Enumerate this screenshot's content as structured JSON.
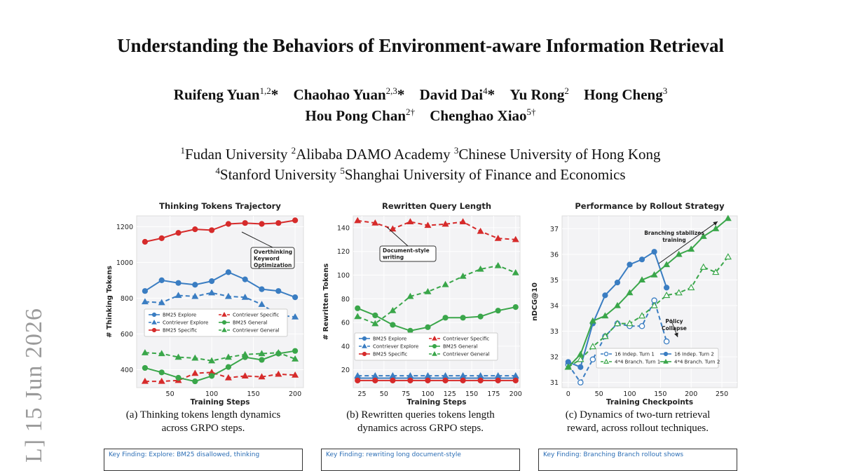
{
  "paper": {
    "title": "Understanding the Behaviors of Environment-aware Information Retrieval",
    "authors_line1": [
      {
        "name": "Ruifeng Yuan",
        "sup": "1,2",
        "mark": "*"
      },
      {
        "name": "Chaohao Yuan",
        "sup": "2,3",
        "mark": "*"
      },
      {
        "name": "David Dai",
        "sup": "4",
        "mark": "*"
      },
      {
        "name": "Yu Rong",
        "sup": "2",
        "mark": ""
      },
      {
        "name": "Hong Cheng",
        "sup": "3",
        "mark": ""
      }
    ],
    "authors_line2": [
      {
        "name": "Hou Pong Chan",
        "sup": "2†",
        "mark": ""
      },
      {
        "name": "Chenghao Xiao",
        "sup": "5†",
        "mark": ""
      }
    ],
    "affiliations_line1": [
      {
        "sup": "1",
        "name": "Fudan University"
      },
      {
        "sup": "2",
        "name": "Alibaba DAMO Academy"
      },
      {
        "sup": "3",
        "name": "Chinese University of Hong Kong"
      }
    ],
    "affiliations_line2": [
      {
        "sup": "4",
        "name": "Stanford University"
      },
      {
        "sup": "5",
        "name": "Shanghai University of Finance and Economics"
      }
    ],
    "arxiv_stamp": "L]  15 Jun 2026",
    "captions": {
      "a": [
        "(a) Thinking tokens length dynamics",
        "across GRPO steps."
      ],
      "b": [
        "(b) Rewritten queries tokens length",
        "dynamics across GRPO steps."
      ],
      "c": [
        "(c) Dynamics of two-turn retrieval",
        "reward, across rollout techniques."
      ]
    },
    "bottom_boxes": [
      "Key Finding: Explore: BM25 disallowed, thinking",
      "Key Finding: rewriting long document-style",
      "Key Finding: Branching Branch rollout shows"
    ]
  },
  "chart_data": [
    {
      "type": "line",
      "title": "Thinking Tokens Trajectory",
      "xlabel": "Training Steps",
      "ylabel": "# Thinking Tokens",
      "xlim": [
        10,
        210
      ],
      "ylim": [
        300,
        1260
      ],
      "xticks": [
        50,
        100,
        150,
        200
      ],
      "yticks": [
        400,
        600,
        800,
        1000,
        1200
      ],
      "grid": true,
      "legend_position": "lower-left",
      "annotation": "Overthinking\nKeyword\nOptimization",
      "x": [
        20,
        40,
        60,
        80,
        100,
        120,
        140,
        160,
        180,
        200
      ],
      "series": [
        {
          "name": "BM25 Explore",
          "color": "#3a7dc2",
          "dash": false,
          "marker": "circle",
          "values": [
            840,
            900,
            885,
            875,
            895,
            945,
            905,
            850,
            840,
            805
          ]
        },
        {
          "name": "Contriever Explore",
          "color": "#3a7dc2",
          "dash": true,
          "marker": "triangle",
          "values": [
            780,
            775,
            815,
            810,
            830,
            810,
            805,
            765,
            705,
            695
          ]
        },
        {
          "name": "BM25 Specific",
          "color": "#d62b2b",
          "dash": false,
          "marker": "circle",
          "values": [
            1115,
            1135,
            1165,
            1185,
            1180,
            1215,
            1220,
            1215,
            1220,
            1235
          ]
        },
        {
          "name": "Contriever Specific",
          "color": "#d62b2b",
          "dash": true,
          "marker": "triangle",
          "values": [
            335,
            335,
            340,
            380,
            385,
            355,
            365,
            360,
            375,
            370
          ]
        },
        {
          "name": "BM25 General",
          "color": "#3aa64a",
          "dash": false,
          "marker": "circle",
          "values": [
            410,
            385,
            355,
            335,
            365,
            415,
            470,
            455,
            490,
            505
          ]
        },
        {
          "name": "Contriever General",
          "color": "#3aa64a",
          "dash": true,
          "marker": "triangle",
          "values": [
            495,
            490,
            470,
            465,
            450,
            470,
            485,
            490,
            495,
            460
          ]
        }
      ]
    },
    {
      "type": "line",
      "title": "Rewritten Query Length",
      "xlabel": "Training Steps",
      "ylabel": "# Rewritten Tokens",
      "xlim": [
        15,
        205
      ],
      "ylim": [
        5,
        150
      ],
      "xticks": [
        25,
        50,
        75,
        100,
        125,
        150,
        175,
        200
      ],
      "yticks": [
        20,
        40,
        60,
        80,
        100,
        120,
        140
      ],
      "grid": true,
      "legend_position": "lower-left",
      "annotation": "Document-style\nwriting",
      "x": [
        20,
        40,
        60,
        80,
        100,
        120,
        140,
        160,
        180,
        200
      ],
      "series": [
        {
          "name": "BM25 Explore",
          "color": "#3a7dc2",
          "dash": false,
          "marker": "circle",
          "values": [
            13,
            13,
            13,
            13,
            13,
            13,
            13,
            13,
            13,
            13
          ]
        },
        {
          "name": "Contriever Explore",
          "color": "#3a7dc2",
          "dash": true,
          "marker": "triangle",
          "values": [
            15,
            15,
            15,
            15,
            15,
            15,
            15,
            15,
            15,
            15
          ]
        },
        {
          "name": "BM25 Specific",
          "color": "#d62b2b",
          "dash": false,
          "marker": "circle",
          "values": [
            11,
            11,
            11,
            11,
            11,
            11,
            11,
            11,
            11,
            11
          ]
        },
        {
          "name": "Contriever Specific",
          "color": "#d62b2b",
          "dash": true,
          "marker": "triangle",
          "values": [
            146,
            144,
            139,
            145,
            142,
            143,
            145,
            137,
            131,
            130
          ]
        },
        {
          "name": "BM25 General",
          "color": "#3aa64a",
          "dash": false,
          "marker": "circle",
          "values": [
            72,
            66,
            58,
            53,
            56,
            64,
            64,
            65,
            70,
            73
          ]
        },
        {
          "name": "Contriever General",
          "color": "#3aa64a",
          "dash": true,
          "marker": "triangle",
          "values": [
            65,
            59,
            70,
            82,
            86,
            92,
            99,
            105,
            108,
            102
          ]
        }
      ]
    },
    {
      "type": "line",
      "title": "Performance by Rollout Strategy",
      "xlabel": "Training Checkpoints",
      "ylabel": "nDCG@10",
      "xlim": [
        -10,
        275
      ],
      "ylim": [
        30.8,
        37.5
      ],
      "xticks": [
        0,
        50,
        100,
        150,
        200,
        250
      ],
      "yticks": [
        31,
        32,
        33,
        34,
        35,
        36,
        37
      ],
      "grid": true,
      "legend_position": "lower-center",
      "annotations": [
        "Branching stabilizes\ntraining",
        "Policy\nCollapse"
      ],
      "series": [
        {
          "name": "16 Indep. Turn 1",
          "color": "#3a7dc2",
          "dash": true,
          "marker": "open-circle",
          "x": [
            0,
            20,
            40,
            60,
            80,
            100,
            120,
            140,
            160
          ],
          "values": [
            31.7,
            31.0,
            31.9,
            32.8,
            33.3,
            33.2,
            33.2,
            34.2,
            32.6
          ]
        },
        {
          "name": "16 Indep. Turn 2",
          "color": "#3a7dc2",
          "dash": false,
          "marker": "circle",
          "x": [
            0,
            20,
            40,
            60,
            80,
            100,
            120,
            140,
            160
          ],
          "values": [
            31.8,
            31.6,
            33.3,
            34.4,
            34.9,
            35.6,
            35.8,
            36.1,
            34.7
          ]
        },
        {
          "name": "4*4 Branch. Turn 1",
          "color": "#3aa64a",
          "dash": true,
          "marker": "open-triangle",
          "x": [
            0,
            20,
            40,
            60,
            80,
            100,
            120,
            140,
            160,
            180,
            200,
            220,
            240,
            260
          ],
          "values": [
            31.6,
            31.9,
            32.4,
            32.8,
            33.3,
            33.3,
            33.6,
            34.0,
            34.4,
            34.5,
            34.7,
            35.5,
            35.3,
            35.9
          ]
        },
        {
          "name": "4*4 Branch. Turn 2",
          "color": "#3aa64a",
          "dash": false,
          "marker": "triangle",
          "x": [
            0,
            20,
            40,
            60,
            80,
            100,
            120,
            140,
            160,
            180,
            200,
            220,
            240,
            260
          ],
          "values": [
            31.6,
            32.1,
            33.4,
            33.6,
            34.0,
            34.5,
            35.0,
            35.2,
            35.6,
            36.0,
            36.2,
            36.7,
            37.0,
            37.4
          ]
        }
      ]
    }
  ]
}
